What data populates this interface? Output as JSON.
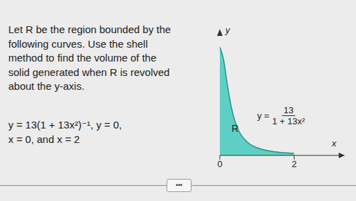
{
  "problem": {
    "lines": [
      "Let R be the region bounded by the",
      "following curves. Use the shell",
      "method to find the volume of the",
      "solid generated when R is revolved",
      "about the y-axis."
    ],
    "equations": [
      "y = 13(1 + 13x²)⁻¹, y = 0,",
      "x = 0, and x = 2"
    ]
  },
  "chart_data": {
    "type": "area",
    "x": [
      0,
      0.1,
      0.2,
      0.3,
      0.4,
      0.5,
      0.75,
      1,
      1.5,
      2
    ],
    "values": [
      13,
      11.5,
      8.55,
      6,
      4.2,
      3.05,
      1.55,
      0.93,
      0.43,
      0.25
    ],
    "xlim": [
      0,
      3.2
    ],
    "ylim": [
      0,
      14.5
    ],
    "xticks": [
      0,
      2
    ],
    "yticks": [],
    "tick_labels": "x",
    "grid": false,
    "color": "#5ecfc4",
    "x_label": "x",
    "y_label": "y",
    "annotations": {
      "region": "R",
      "curve": {
        "prefix": "y =",
        "numerator": "13",
        "denominator": "1 + 13x²"
      }
    }
  },
  "footer": {
    "button": "•••"
  }
}
